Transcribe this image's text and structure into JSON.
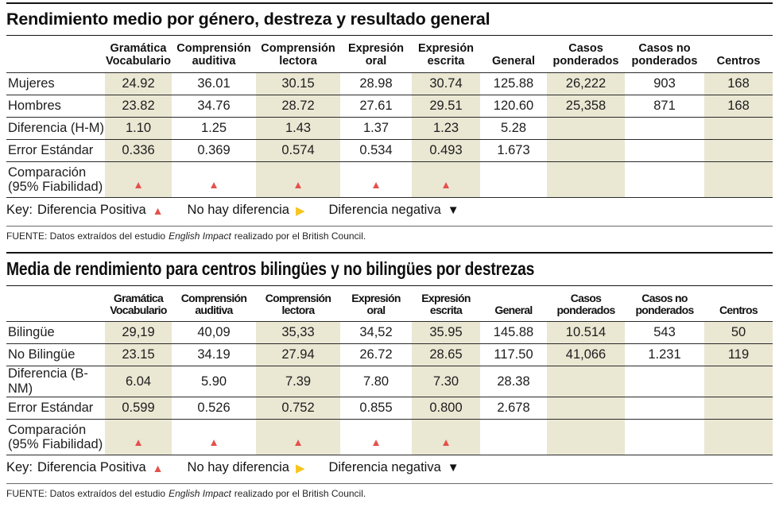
{
  "colors": {
    "band_highlight": "#eae7d3",
    "positive_triangle": "#e4514b",
    "no_difference_triangle": "#f8c51c",
    "negative_triangle": "#141414",
    "rule": "#141414"
  },
  "key": {
    "label": "Key:",
    "items": [
      {
        "text": "Diferencia Positiva",
        "symbol": "▲",
        "meaning": "positive"
      },
      {
        "text": "No hay diferencia",
        "symbol": "▶",
        "meaning": "none"
      },
      {
        "text": "Diferencia negativa",
        "symbol": "▼",
        "meaning": "negative"
      }
    ]
  },
  "source": {
    "prefix": "FUENTE: Datos extraídos del estudio",
    "italic": "English Impact",
    "suffix": "realizado por el British Council."
  },
  "chart_data": [
    {
      "type": "table",
      "title": "Rendimiento medio por género, destreza y resultado general",
      "columns": [
        [
          "",
          ""
        ],
        [
          "Gramática",
          "Vocabulario"
        ],
        [
          "Comprensión",
          "auditiva"
        ],
        [
          "Comprensión",
          "lectora"
        ],
        [
          "Expresión",
          "oral"
        ],
        [
          "Expresión",
          "escrita"
        ],
        [
          "General",
          ""
        ],
        [
          "Casos",
          "ponderados"
        ],
        [
          "Casos no",
          "ponderados"
        ],
        [
          "Centros",
          ""
        ]
      ],
      "rows": [
        {
          "label": "Mujeres",
          "values": [
            "24.92",
            "36.01",
            "30.15",
            "28.98",
            "30.74",
            "125.88",
            "26,222",
            "903",
            "168"
          ]
        },
        {
          "label": "Hombres",
          "values": [
            "23.82",
            "34.76",
            "28.72",
            "27.61",
            "29.51",
            "120.60",
            "25,358",
            "871",
            "168"
          ]
        },
        {
          "label": "Diferencia (H-M)",
          "values": [
            "1.10",
            "1.25",
            "1.43",
            "1.37",
            "1.23",
            "5.28",
            "",
            "",
            ""
          ]
        },
        {
          "label": "Error Estándar",
          "values": [
            "0.336",
            "0.369",
            "0.574",
            "0.534",
            "0.493",
            "1.673",
            "",
            "",
            ""
          ]
        },
        {
          "label": "Comparación (95% Fiabilidad)",
          "label_lines": [
            "Comparación",
            "(95% Fiabilidad)"
          ],
          "comparison": true,
          "values": [
            "▲",
            "▲",
            "▲",
            "▲",
            "▲",
            "",
            "",
            "",
            ""
          ]
        }
      ]
    },
    {
      "type": "table",
      "title": "Media de rendimiento para centros bilingües y no bilingües por destrezas",
      "columns": [
        [
          "",
          ""
        ],
        [
          "Gramática",
          "Vocabulario"
        ],
        [
          "Comprensión",
          "auditiva"
        ],
        [
          "Comprensión",
          "lectora"
        ],
        [
          "Expresión",
          "oral"
        ],
        [
          "Expresión",
          "escrita"
        ],
        [
          "General",
          ""
        ],
        [
          "Casos",
          "ponderados"
        ],
        [
          "Casos no",
          "ponderados"
        ],
        [
          "Centros",
          ""
        ]
      ],
      "rows": [
        {
          "label": "Bilingüe",
          "values": [
            "29,19",
            "40,09",
            "35,33",
            "34,52",
            "35.95",
            "145.88",
            "10.514",
            "543",
            "50"
          ]
        },
        {
          "label": "No Bilingüe",
          "values": [
            "23.15",
            "34.19",
            "27.94",
            "26.72",
            "28.65",
            "117.50",
            "41,066",
            "1.231",
            "119"
          ]
        },
        {
          "label": "Diferencia (B-NM)",
          "values": [
            "6.04",
            "5.90",
            "7.39",
            "7.80",
            "7.30",
            "28.38",
            "",
            "",
            ""
          ]
        },
        {
          "label": "Error Estándar",
          "values": [
            "0.599",
            "0.526",
            "0.752",
            "0.855",
            "0.800",
            "2.678",
            "",
            "",
            ""
          ]
        },
        {
          "label": "Comparación (95% Fiabilidad)",
          "label_lines": [
            "Comparación",
            "(95% Fiabilidad)"
          ],
          "comparison": true,
          "values": [
            "▲",
            "▲",
            "▲",
            "▲",
            "▲",
            "",
            "",
            "",
            ""
          ]
        }
      ]
    }
  ]
}
